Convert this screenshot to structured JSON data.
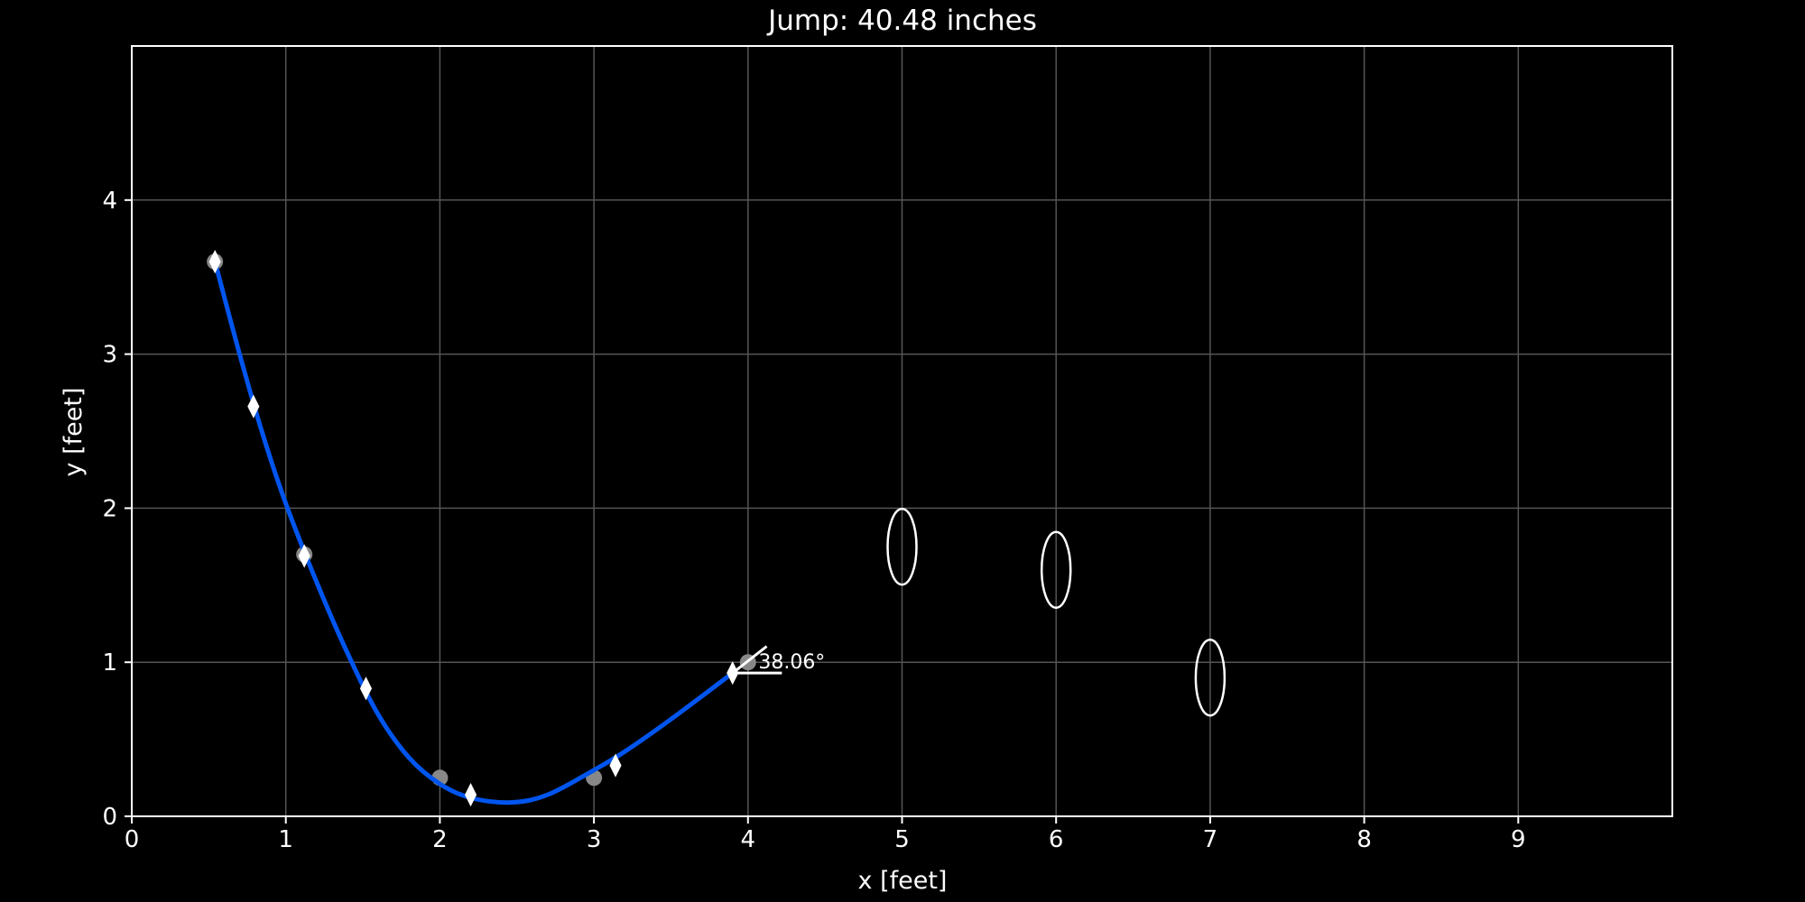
{
  "chart_data": {
    "type": "scatter",
    "title": "Jump: 40.48 inches",
    "xlabel": "x [feet]",
    "ylabel": "y [feet]",
    "xlim": [
      0,
      10
    ],
    "ylim": [
      0,
      5
    ],
    "xticks": [
      "0",
      "1",
      "2",
      "3",
      "4",
      "5",
      "6",
      "7",
      "8",
      "9"
    ],
    "yticks": [
      "0",
      "1",
      "2",
      "3",
      "4"
    ],
    "grid": true,
    "background": "#000000",
    "colors": {
      "curve": "#0055ee",
      "markers": "#ffffff",
      "circles": "#888888",
      "grid": "#555555",
      "axes": "#ffffff"
    },
    "series": [
      {
        "marker": "circle",
        "x": [
          0.54,
          1.12,
          2.0,
          3.0,
          4.0
        ],
        "y": [
          3.6,
          1.7,
          0.25,
          0.25,
          1.0
        ]
      },
      {
        "marker": "diamond",
        "x": [
          0.54,
          0.79,
          1.12,
          1.52,
          2.2,
          3.14,
          3.9
        ],
        "y": [
          3.6,
          2.66,
          1.69,
          0.83,
          0.14,
          0.33,
          0.93
        ]
      },
      {
        "marker": "ellipse",
        "x": [
          5.0,
          6.0,
          7.0
        ],
        "y": [
          1.75,
          1.6,
          0.9
        ]
      }
    ],
    "fit_curve": {
      "x": [
        0.54,
        0.7,
        0.85,
        1.0,
        1.2,
        1.4,
        1.6,
        1.8,
        2.0,
        2.2,
        2.46,
        2.7,
        3.0,
        3.2,
        3.5,
        3.9
      ],
      "y": [
        3.6,
        3.0,
        2.48,
        2.03,
        1.52,
        1.06,
        0.66,
        0.38,
        0.21,
        0.12,
        0.09,
        0.14,
        0.3,
        0.42,
        0.63,
        0.93
      ]
    },
    "annotations": [
      {
        "text": "38.06°",
        "x": 4.05,
        "y": 1.0
      }
    ]
  }
}
